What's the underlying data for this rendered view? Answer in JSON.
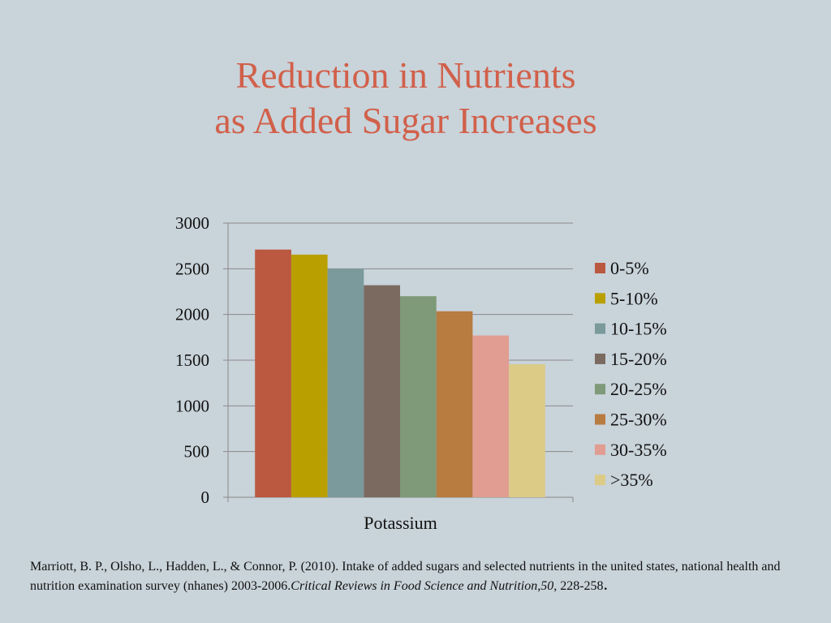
{
  "title": {
    "line1": "Reduction in Nutrients",
    "line2": "as Added Sugar Increases"
  },
  "chart_data": {
    "type": "bar",
    "categories": [
      "Potassium"
    ],
    "series": [
      {
        "name": "0-5%",
        "values": [
          2710
        ],
        "color": "#bb5840"
      },
      {
        "name": "5-10%",
        "values": [
          2655
        ],
        "color": "#b9a000"
      },
      {
        "name": "10-15%",
        "values": [
          2500
        ],
        "color": "#7a9a9c"
      },
      {
        "name": "15-20%",
        "values": [
          2320
        ],
        "color": "#7a6a5f"
      },
      {
        "name": "20-25%",
        "values": [
          2200
        ],
        "color": "#7e9a78"
      },
      {
        "name": "25-30%",
        "values": [
          2035
        ],
        "color": "#b87b40"
      },
      {
        "name": "30-35%",
        "values": [
          1770
        ],
        "color": "#e19d91"
      },
      {
        "name": ">35%",
        "values": [
          1455
        ],
        "color": "#dccb86"
      }
    ],
    "y_ticks": [
      "0",
      "500",
      "1000",
      "1500",
      "2000",
      "2500",
      "3000"
    ],
    "ylim": [
      0,
      3000
    ],
    "xlabel": "",
    "ylabel": "",
    "grid": true,
    "legend_position": "right"
  },
  "citation": {
    "authors": "Marriott, B. P., Olsho, L., Hadden, L., & Connor, P. (2010). Intake of added sugars and selected nutrients in the united states, national health and nutrition examination survey (nhanes) 2003-2006.",
    "journal": "Critical Reviews in Food Science and Nutrition",
    "separator": ",",
    "volume": "50",
    "pages": ", 228-258",
    "end": "."
  }
}
